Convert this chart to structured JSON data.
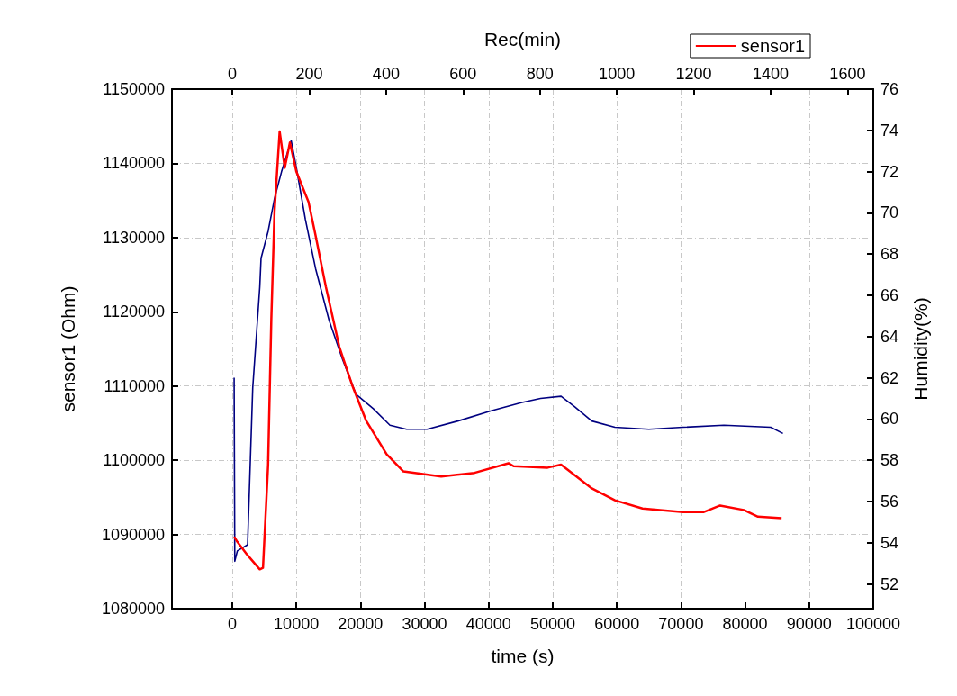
{
  "chart_data": {
    "type": "line",
    "xlabel": "time (s)",
    "ylabel": "sensor1 (Ohm)",
    "y2label": "Humidity(%)",
    "x2label": "Rec(min)",
    "xlim": [
      -9400,
      100000
    ],
    "xticks": [
      0,
      10000,
      20000,
      30000,
      40000,
      50000,
      60000,
      70000,
      80000,
      90000,
      100000
    ],
    "x2lim": [
      -157,
      1667
    ],
    "x2ticks": [
      0,
      200,
      400,
      600,
      800,
      1000,
      1200,
      1400,
      1600
    ],
    "ylim": [
      1080000,
      1150000
    ],
    "yticks": [
      1080000,
      1090000,
      1100000,
      1110000,
      1120000,
      1130000,
      1140000,
      1150000
    ],
    "y2lim": [
      50.8,
      76
    ],
    "y2ticks": [
      52,
      54,
      56,
      58,
      60,
      62,
      64,
      66,
      68,
      70,
      72,
      74,
      76
    ],
    "grid": true,
    "legend": "top right",
    "line_style": "solid",
    "marker": "none",
    "series": [
      {
        "name": "sensor1",
        "color": "#ff0000",
        "x": [
          300,
          800,
          2400,
          4300,
          4800,
          5600,
          6100,
          6600,
          7400,
          8200,
          9000,
          10000,
          11900,
          13000,
          14600,
          16700,
          18800,
          20900,
          24100,
          26700,
          32600,
          37800,
          43100,
          43900,
          49200,
          51300,
          56100,
          59700,
          64000,
          70300,
          73500,
          76100,
          79800,
          82000,
          85700
        ],
        "values": [
          1089700,
          1089000,
          1087200,
          1085300,
          1085500,
          1099400,
          1119000,
          1133500,
          1144300,
          1139400,
          1142800,
          1138900,
          1134800,
          1130300,
          1123400,
          1115300,
          1109900,
          1105300,
          1100800,
          1098500,
          1097800,
          1098300,
          1099600,
          1099200,
          1099000,
          1099400,
          1096200,
          1094600,
          1093500,
          1093000,
          1093000,
          1093900,
          1093300,
          1092400,
          1092200
        ]
      },
      {
        "axis": "y2",
        "color": "#000080",
        "x": [
          300,
          400,
          800,
          2400,
          3200,
          4300,
          4500,
          5600,
          6600,
          7700,
          9200,
          10000,
          11400,
          13000,
          15100,
          17200,
          19300,
          22000,
          24600,
          27200,
          30400,
          35200,
          40400,
          45200,
          48100,
          51300,
          53400,
          56100,
          59700,
          65000,
          70300,
          76700,
          84000,
          85900
        ],
        "values": [
          62.0,
          53.1,
          53.6,
          53.9,
          61.5,
          66.4,
          67.8,
          69.1,
          70.7,
          72.0,
          73.5,
          72.2,
          69.7,
          67.3,
          64.8,
          62.9,
          61.2,
          60.5,
          59.7,
          59.5,
          59.5,
          59.9,
          60.4,
          60.8,
          61.0,
          61.1,
          60.6,
          59.9,
          59.6,
          59.5,
          59.6,
          59.7,
          59.6,
          59.3
        ]
      }
    ]
  }
}
